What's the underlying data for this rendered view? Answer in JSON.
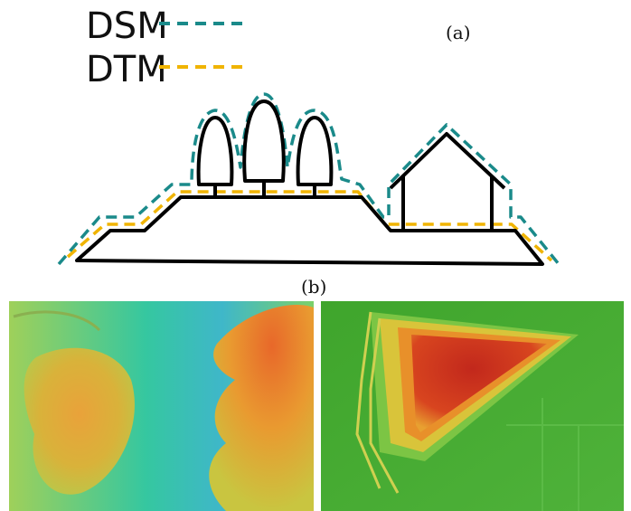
{
  "legend": [
    {
      "label": "DSM"
    },
    {
      "label": "DTM"
    }
  ],
  "panel_a": {
    "label": "(a)"
  },
  "panel_b": {
    "label": "(b)"
  }
}
